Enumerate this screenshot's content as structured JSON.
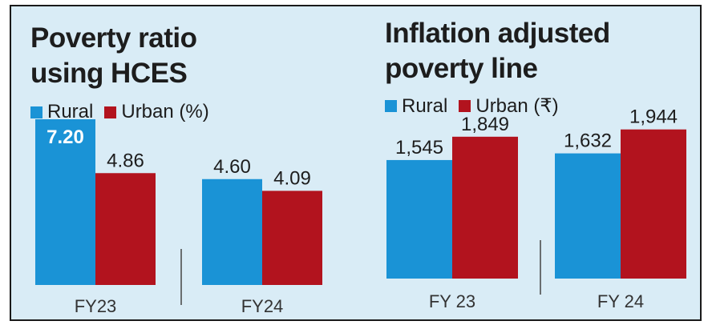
{
  "colors": {
    "rural": "#1a93d6",
    "urban": "#b2131e"
  },
  "chart_data": [
    {
      "type": "bar",
      "title": [
        "Poverty ratio",
        "using HCES"
      ],
      "categories": [
        "FY23",
        "FY24"
      ],
      "series": [
        {
          "name": "Rural",
          "values": [
            7.2,
            4.6
          ],
          "labels": [
            "7.20",
            "4.60"
          ]
        },
        {
          "name": "Urban (%)",
          "values": [
            4.86,
            4.09
          ],
          "labels": [
            "4.86",
            "4.09"
          ]
        }
      ],
      "xlabel": "",
      "ylabel": "",
      "ylim": [
        0,
        8
      ],
      "grid": false,
      "legend": "top-left"
    },
    {
      "type": "bar",
      "title": [
        "Inflation adjusted",
        "poverty line"
      ],
      "categories": [
        "FY 23",
        "FY 24"
      ],
      "series": [
        {
          "name": "Rural",
          "values": [
            1545,
            1632
          ],
          "labels": [
            "1,545",
            "1,632"
          ]
        },
        {
          "name": "Urban (₹)",
          "values": [
            1849,
            1944
          ],
          "labels": [
            "1,849",
            "1,944"
          ]
        }
      ],
      "xlabel": "",
      "ylabel": "",
      "ylim": [
        0,
        2400
      ],
      "grid": false,
      "legend": "top-left"
    }
  ]
}
